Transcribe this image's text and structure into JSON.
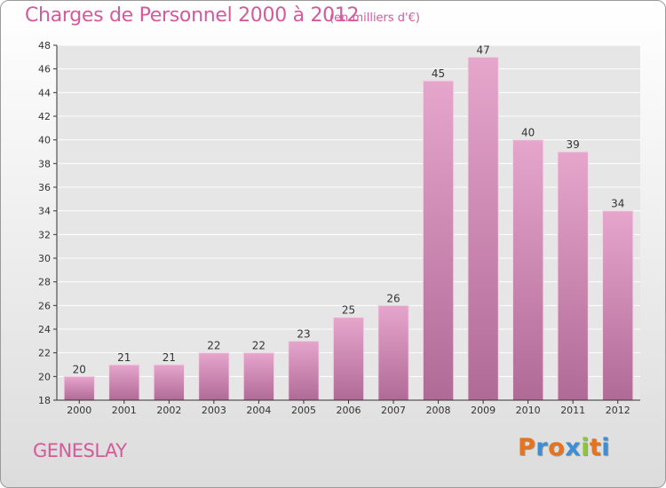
{
  "header": {
    "title": "Charges de Personnel 2000 à 2012",
    "unit": "(en milliers d'€)"
  },
  "footer": {
    "commune": "GENESLAY",
    "logo_letters": [
      "P",
      "r",
      "o",
      "x",
      "i",
      "t",
      "i"
    ],
    "logo_colors": [
      "#e8731a",
      "#3c8fd4",
      "#e8731a",
      "#3c8fd4",
      "#8cc63f",
      "#e8731a",
      "#3c8fd4"
    ]
  },
  "colors": {
    "title": "#d45a9a",
    "bar_top": "#e6a6cc",
    "bar_bottom": "#b06a96",
    "grid": "#ffffff",
    "axis": "#333333"
  },
  "chart_data": {
    "type": "bar",
    "title": "Charges de Personnel 2000 à 2012",
    "subtitle": "(en milliers d'€)",
    "xlabel": "",
    "ylabel": "",
    "categories": [
      "2000",
      "2001",
      "2002",
      "2003",
      "2004",
      "2005",
      "2006",
      "2007",
      "2008",
      "2009",
      "2010",
      "2011",
      "2012"
    ],
    "values": [
      20,
      21,
      21,
      22,
      22,
      23,
      25,
      26,
      45,
      47,
      40,
      39,
      34
    ],
    "ylim": [
      18,
      48
    ],
    "yticks": [
      18,
      20,
      22,
      24,
      26,
      28,
      30,
      32,
      34,
      36,
      38,
      40,
      42,
      44,
      46,
      48
    ],
    "grid": true,
    "legend": "none"
  }
}
